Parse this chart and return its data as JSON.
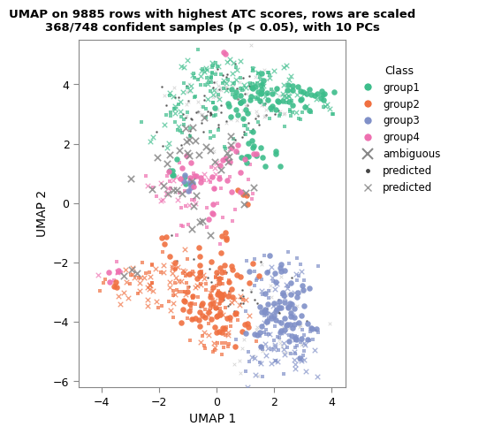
{
  "title": "UMAP on 9885 rows with highest ATC scores, rows are scaled\n368/748 confident samples (p < 0.05), with 10 PCs",
  "xlabel": "UMAP 1",
  "ylabel": "UMAP 2",
  "xlim": [
    -4.8,
    4.5
  ],
  "ylim": [
    -6.2,
    5.5
  ],
  "xticks": [
    -4,
    -2,
    0,
    2,
    4
  ],
  "yticks": [
    -6,
    -4,
    -2,
    0,
    2,
    4
  ],
  "colors": {
    "group1": "#3DBD8B",
    "group2": "#F07040",
    "group3": "#8090C8",
    "group4": "#EE70B0",
    "ambiguous": "#888888",
    "predicted_dot": "#444444",
    "predicted_x": "#BBBBBB"
  },
  "legend_title": "Class",
  "background": "#FFFFFF",
  "seed": 42
}
